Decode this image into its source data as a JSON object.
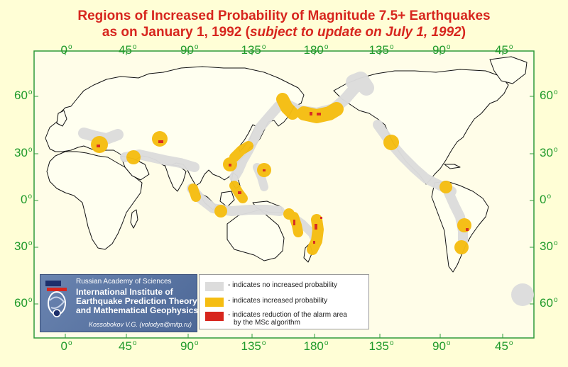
{
  "title": {
    "line1": "Regions of Increased Probability of Magnitude 7.5+ Earthquakes",
    "line2_prefix": "as on January 1, 1992 (",
    "line2_italic": "subject to update on July 1, 1992",
    "line2_suffix": ")"
  },
  "axes": {
    "longitude_ticks": [
      "0",
      "45",
      "90",
      "135",
      "180",
      "135",
      "90",
      "45"
    ],
    "latitude_ticks": [
      "60",
      "30",
      "0",
      "30",
      "60"
    ],
    "degree_symbol": "o"
  },
  "colors": {
    "background": "#fffed6",
    "frame": "#2f9a3a",
    "tick_text": "#1f9a2a",
    "title": "#d7261e",
    "no_increase": "#dcdcdc",
    "increased": "#f5bd12",
    "reduction": "#d7261e",
    "institute_panel": "#5b76a4"
  },
  "legend": {
    "items": [
      {
        "key": "no_increase",
        "label": "- indicates no increased probability"
      },
      {
        "key": "increased",
        "label": "- indicates increased probability"
      },
      {
        "key": "reduction",
        "label": "- indicates reduction of the alarm area",
        "label2": "by the MSc algorithm"
      }
    ]
  },
  "institute": {
    "academy": "Russian Academy of Sciences",
    "name_lines": [
      "International Institute of",
      "Earthquake Prediction Theory",
      "and Mathematical Geophysics"
    ],
    "author": "Kossobokov V.G. (volodya@mitp.ru)"
  }
}
